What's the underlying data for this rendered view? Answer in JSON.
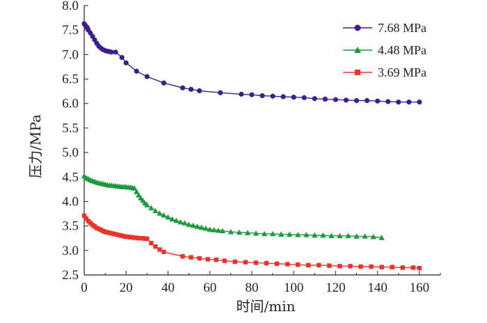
{
  "chart_data": {
    "type": "line",
    "xlabel": "时间/min",
    "ylabel": "压力/MPa",
    "xlim": [
      0,
      170
    ],
    "ylim": [
      2.5,
      8.0
    ],
    "xticks": [
      "0",
      "20",
      "40",
      "60",
      "80",
      "100",
      "120",
      "140",
      "160"
    ],
    "xtick_values": [
      0,
      20,
      40,
      60,
      80,
      100,
      120,
      140,
      160
    ],
    "yticks": [
      "2.5",
      "3.0",
      "3.5",
      "4.0",
      "4.5",
      "5.0",
      "5.5",
      "6.0",
      "6.5",
      "7.0",
      "7.5",
      "8.0"
    ],
    "ytick_values": [
      2.5,
      3.0,
      3.5,
      4.0,
      4.5,
      5.0,
      5.5,
      6.0,
      6.5,
      7.0,
      7.5,
      8.0
    ],
    "grid": false,
    "legend_position": "top-right",
    "series": [
      {
        "name": "7.68 MPa",
        "color": "#3b1f8c",
        "marker": "circle",
        "x": [
          0,
          0.5,
          1,
          1.5,
          2,
          3,
          4,
          5,
          6,
          7,
          8,
          9,
          10,
          11,
          12,
          13,
          15,
          18,
          20,
          25,
          30,
          38,
          47,
          51,
          55,
          65,
          75,
          80,
          85,
          90,
          95,
          100,
          105,
          110,
          115,
          120,
          125,
          130,
          135,
          140,
          145,
          150,
          155,
          160
        ],
        "y": [
          7.63,
          7.6,
          7.57,
          7.55,
          7.5,
          7.44,
          7.37,
          7.3,
          7.23,
          7.17,
          7.13,
          7.1,
          7.08,
          7.07,
          7.06,
          7.05,
          7.05,
          6.94,
          6.83,
          6.66,
          6.55,
          6.42,
          6.32,
          6.29,
          6.26,
          6.22,
          6.19,
          6.18,
          6.16,
          6.15,
          6.14,
          6.13,
          6.12,
          6.1,
          6.09,
          6.08,
          6.07,
          6.06,
          6.06,
          6.05,
          6.04,
          6.03,
          6.03,
          6.03
        ]
      },
      {
        "name": "4.48 MPa",
        "color": "#1a9a3c",
        "marker": "triangle",
        "x": [
          0,
          1,
          2,
          3,
          4,
          5,
          6,
          7,
          8,
          9,
          10,
          11,
          12,
          13,
          14,
          15,
          16,
          17,
          18,
          19,
          20,
          21,
          22,
          23,
          24,
          25,
          26,
          27,
          28,
          29,
          30,
          32,
          34,
          36,
          38,
          40,
          42,
          44,
          46,
          48,
          50,
          52,
          54,
          56,
          58,
          60,
          62,
          64,
          66,
          70,
          74,
          78,
          82,
          86,
          90,
          94,
          98,
          102,
          106,
          110,
          114,
          118,
          122,
          126,
          130,
          134,
          138,
          142
        ],
        "y": [
          4.52,
          4.48,
          4.46,
          4.44,
          4.42,
          4.41,
          4.39,
          4.38,
          4.37,
          4.36,
          4.35,
          4.34,
          4.33,
          4.33,
          4.32,
          4.32,
          4.31,
          4.31,
          4.3,
          4.3,
          4.3,
          4.29,
          4.29,
          4.28,
          4.27,
          4.2,
          4.13,
          4.07,
          4.02,
          3.97,
          3.93,
          3.87,
          3.81,
          3.76,
          3.72,
          3.68,
          3.64,
          3.61,
          3.58,
          3.56,
          3.53,
          3.51,
          3.49,
          3.47,
          3.45,
          3.43,
          3.42,
          3.41,
          3.4,
          3.38,
          3.37,
          3.36,
          3.35,
          3.34,
          3.34,
          3.33,
          3.33,
          3.32,
          3.32,
          3.31,
          3.31,
          3.3,
          3.3,
          3.3,
          3.29,
          3.29,
          3.28,
          3.26
        ]
      },
      {
        "name": "3.69 MPa",
        "color": "#e8342a",
        "marker": "square",
        "x": [
          0,
          1,
          2,
          3,
          4,
          5,
          6,
          7,
          8,
          9,
          10,
          11,
          12,
          13,
          14,
          15,
          16,
          17,
          18,
          19,
          20,
          21,
          22,
          23,
          24,
          25,
          26,
          27,
          28,
          29,
          30,
          32,
          34,
          36,
          38,
          47,
          51,
          55,
          59,
          63,
          67,
          72,
          77,
          82,
          87,
          92,
          97,
          102,
          107,
          112,
          117,
          122,
          127,
          132,
          137,
          142,
          147,
          152,
          157,
          160
        ],
        "y": [
          3.71,
          3.65,
          3.6,
          3.56,
          3.52,
          3.49,
          3.46,
          3.44,
          3.42,
          3.4,
          3.38,
          3.37,
          3.36,
          3.35,
          3.34,
          3.33,
          3.32,
          3.31,
          3.3,
          3.29,
          3.28,
          3.28,
          3.27,
          3.27,
          3.26,
          3.26,
          3.25,
          3.25,
          3.25,
          3.24,
          3.24,
          3.15,
          3.08,
          3.02,
          2.97,
          2.88,
          2.86,
          2.84,
          2.82,
          2.81,
          2.79,
          2.77,
          2.76,
          2.75,
          2.74,
          2.73,
          2.72,
          2.71,
          2.7,
          2.7,
          2.69,
          2.68,
          2.68,
          2.67,
          2.67,
          2.66,
          2.66,
          2.65,
          2.65,
          2.64
        ]
      }
    ]
  }
}
